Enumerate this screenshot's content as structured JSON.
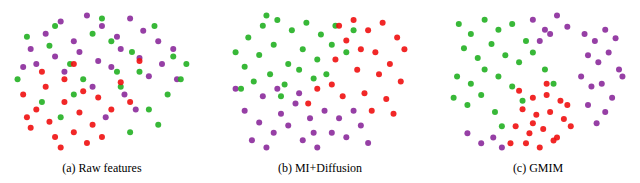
{
  "chart_data": [
    {
      "type": "scatter",
      "title": "(a) Raw features",
      "tick_labels": false,
      "grid": false,
      "series": [
        {
          "color": "#8b2a9b",
          "x": [
            12,
            20,
            28,
            35,
            42,
            50,
            58,
            65,
            72,
            80,
            88,
            15,
            25,
            38,
            48,
            60,
            70,
            82,
            30,
            55,
            75,
            45,
            62,
            90,
            8,
            68,
            52
          ],
          "y": [
            70,
            80,
            88,
            75,
            92,
            85,
            78,
            90,
            82,
            75,
            70,
            60,
            65,
            68,
            62,
            70,
            64,
            60,
            55,
            58,
            52,
            45,
            40,
            50,
            58,
            30,
            25
          ]
        },
        {
          "color": "#22b022",
          "x": [
            10,
            22,
            33,
            45,
            55,
            66,
            78,
            88,
            92,
            85,
            70,
            40,
            25,
            60,
            75,
            95,
            50,
            35,
            18,
            80,
            65,
            5,
            28,
            58
          ],
          "y": [
            78,
            72,
            60,
            80,
            75,
            68,
            85,
            65,
            50,
            40,
            55,
            50,
            85,
            45,
            30,
            60,
            90,
            40,
            35,
            20,
            15,
            50,
            25,
            55
          ]
        },
        {
          "color": "#f01010",
          "x": [
            8,
            15,
            22,
            30,
            38,
            45,
            12,
            25,
            35,
            48,
            20,
            30,
            40,
            55,
            18,
            28,
            42,
            60,
            10,
            50,
            65,
            70,
            35
          ],
          "y": [
            40,
            30,
            22,
            35,
            28,
            20,
            18,
            12,
            15,
            38,
            45,
            50,
            42,
            30,
            55,
            5,
            8,
            48,
            25,
            12,
            35,
            62,
            60
          ]
        }
      ]
    },
    {
      "type": "scatter",
      "title": "(b) MI+Diffusion",
      "tick_labels": false,
      "grid": false,
      "series": [
        {
          "color": "#8b2a9b",
          "x": [
            10,
            18,
            26,
            34,
            42,
            50,
            58,
            66,
            74,
            14,
            22,
            30,
            38,
            46,
            54,
            62,
            70,
            5,
            78,
            40,
            28,
            48,
            20
          ],
          "y": [
            30,
            22,
            15,
            20,
            10,
            5,
            15,
            12,
            20,
            10,
            5,
            28,
            35,
            25,
            30,
            25,
            30,
            45,
            8,
            42,
            45,
            15,
            40
          ]
        },
        {
          "color": "#22b022",
          "x": [
            5,
            12,
            20,
            28,
            36,
            44,
            52,
            60,
            10,
            18,
            26,
            34,
            42,
            50,
            58,
            66,
            15,
            24,
            32,
            40,
            48,
            8,
            30,
            55,
            70,
            22
          ],
          "y": [
            70,
            80,
            88,
            92,
            85,
            90,
            82,
            88,
            60,
            68,
            75,
            62,
            72,
            65,
            75,
            70,
            50,
            55,
            48,
            58,
            52,
            45,
            40,
            55,
            85,
            95
          ]
        },
        {
          "color": "#f01010",
          "x": [
            62,
            70,
            78,
            86,
            94,
            98,
            66,
            74,
            82,
            90,
            60,
            72,
            84,
            96,
            58,
            64,
            76,
            88,
            50,
            45,
            80,
            92
          ],
          "y": [
            88,
            92,
            85,
            90,
            80,
            72,
            78,
            72,
            70,
            62,
            65,
            58,
            55,
            50,
            48,
            40,
            42,
            38,
            45,
            35,
            30,
            28
          ]
        }
      ]
    },
    {
      "type": "scatter",
      "title": "(c) GMIM",
      "tick_labels": false,
      "grid": false,
      "series": [
        {
          "color": "#8b2a9b",
          "x": [
            78,
            84,
            90,
            96,
            80,
            86,
            92,
            98,
            76,
            82,
            88,
            94,
            80,
            90,
            85,
            48,
            55,
            62,
            68,
            52,
            58,
            10,
            18,
            25,
            30,
            100
          ],
          "y": [
            85,
            80,
            88,
            82,
            70,
            65,
            72,
            60,
            55,
            48,
            50,
            40,
            35,
            30,
            22,
            95,
            88,
            98,
            90,
            80,
            85,
            15,
            8,
            12,
            5,
            55
          ]
        },
        {
          "color": "#22b022",
          "x": [
            5,
            12,
            20,
            28,
            36,
            44,
            8,
            16,
            24,
            32,
            40,
            48,
            4,
            12,
            20,
            28,
            36,
            2,
            10,
            18,
            26,
            55,
            60,
            42,
            30
          ],
          "y": [
            92,
            85,
            95,
            88,
            92,
            80,
            75,
            68,
            78,
            70,
            65,
            72,
            55,
            50,
            60,
            55,
            48,
            40,
            35,
            42,
            30,
            60,
            50,
            38,
            20
          ]
        },
        {
          "color": "#f01010",
          "x": [
            40,
            48,
            56,
            64,
            42,
            50,
            58,
            66,
            38,
            46,
            54,
            62,
            70,
            44,
            52,
            60,
            35,
            68,
            56,
            48
          ],
          "y": [
            45,
            40,
            42,
            38,
            32,
            28,
            30,
            25,
            20,
            15,
            18,
            12,
            20,
            8,
            5,
            10,
            8,
            35,
            50,
            22
          ]
        }
      ]
    }
  ]
}
